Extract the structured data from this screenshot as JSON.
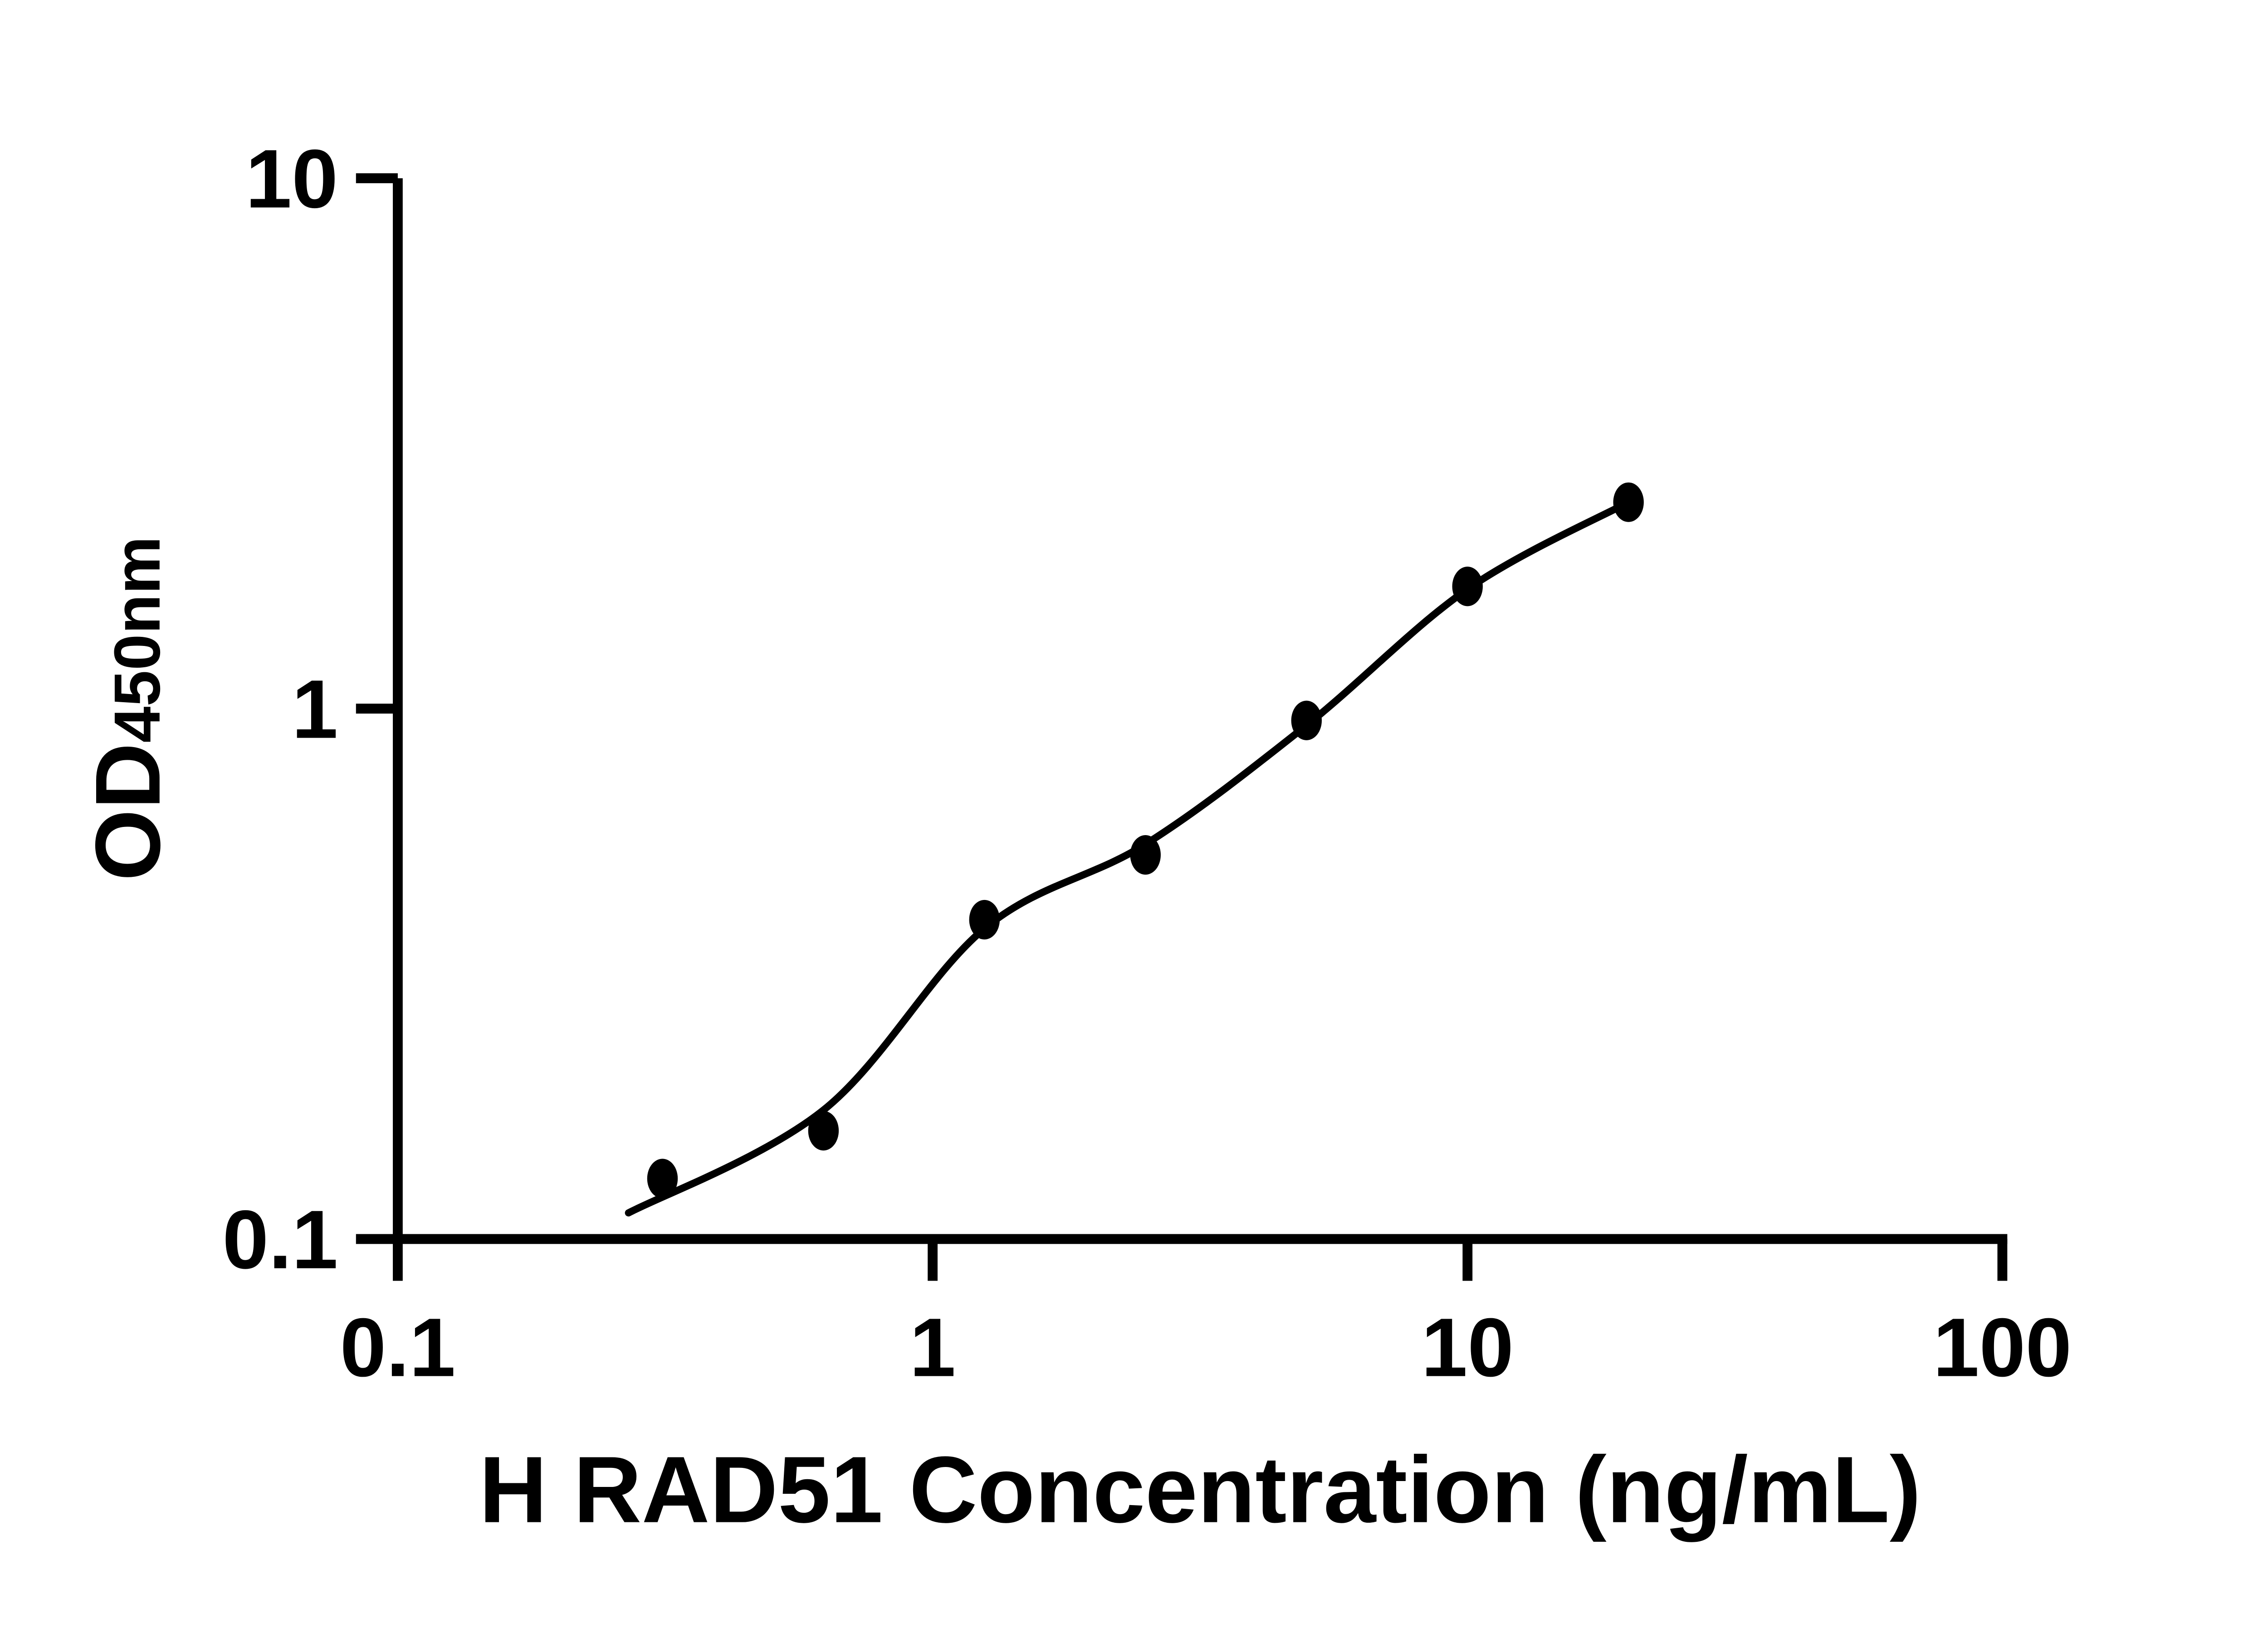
{
  "chart_data": {
    "type": "scatter",
    "title": "",
    "xlabel": "H RAD51 Concentration (ng/mL)",
    "ylabel": "OD",
    "ylabel_subscript": "450nm",
    "x_scale": "log",
    "y_scale": "log",
    "xlim": [
      0.1,
      100
    ],
    "ylim": [
      0.1,
      10
    ],
    "x_ticks": [
      0.1,
      1,
      10,
      100
    ],
    "x_tick_labels": [
      "0.1",
      "1",
      "10",
      "100"
    ],
    "y_ticks": [
      10,
      1,
      0.1
    ],
    "y_tick_labels": [
      "10",
      "1",
      "0.1"
    ],
    "grid": false,
    "legend": false,
    "series": [
      {
        "name": "standard-curve-points",
        "marker": "filled-ellipse",
        "color": "#000000",
        "x": [
          0.3125,
          0.625,
          1.25,
          2.5,
          5,
          10,
          20
        ],
        "y": [
          0.13,
          0.16,
          0.4,
          0.53,
          0.95,
          1.7,
          2.45
        ]
      }
    ],
    "fit_curve": {
      "name": "fitted-standard-curve",
      "color": "#000000",
      "points": [
        [
          0.27,
          0.112
        ],
        [
          0.625,
          0.175
        ],
        [
          1.25,
          0.385
        ],
        [
          2.5,
          0.555
        ],
        [
          5,
          0.93
        ],
        [
          10,
          1.68
        ],
        [
          20,
          2.45
        ]
      ]
    }
  },
  "colors": {
    "foreground": "#000000",
    "background": "#ffffff"
  }
}
